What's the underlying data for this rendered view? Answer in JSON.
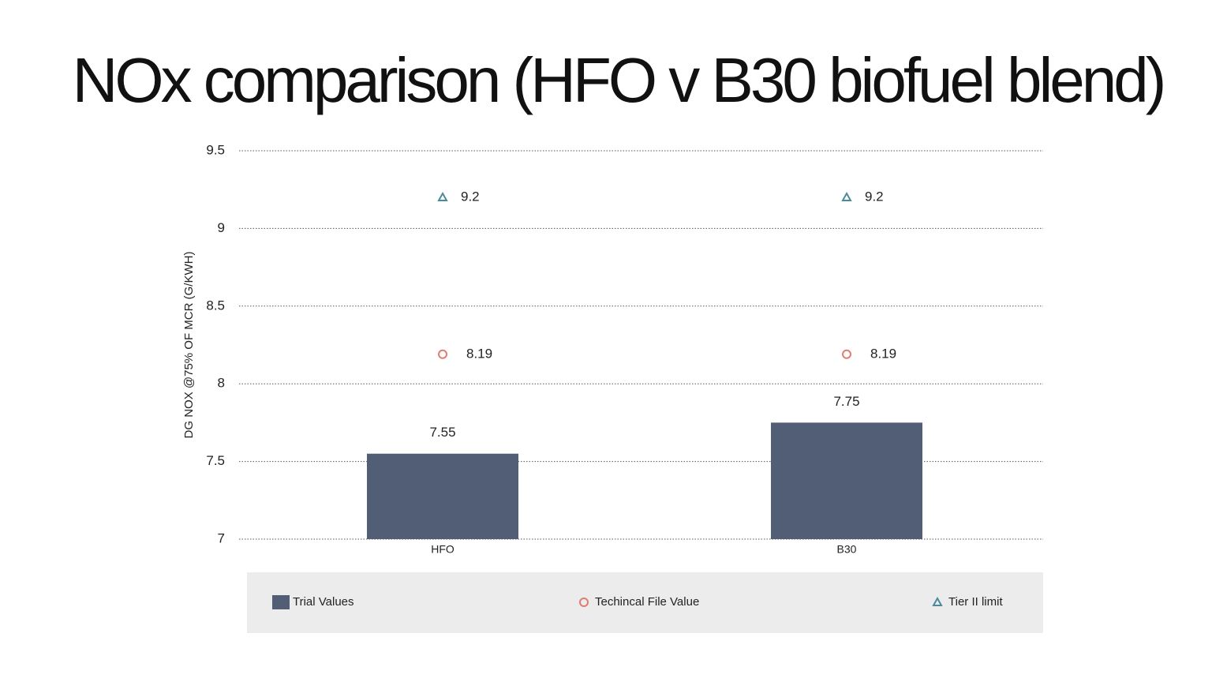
{
  "chart_data": {
    "type": "bar",
    "title": "NOx comparison (HFO v B30 biofuel blend)",
    "y_label": "DG NOX @75% OF MCR (G/KWH)",
    "categories": [
      "HFO",
      "B30"
    ],
    "series": [
      {
        "name": "Trial Values",
        "color": "#525e75",
        "marker": "bar",
        "values": [
          7.55,
          7.75
        ]
      },
      {
        "name": "Techincal File Value",
        "color": "#e07b70",
        "marker": "circle",
        "values": [
          8.19,
          8.19
        ]
      },
      {
        "name": "Tier II limit",
        "color": "#4a8a9a",
        "marker": "triangle",
        "values": [
          9.2,
          9.2
        ]
      }
    ],
    "ylim": [
      7,
      9.5
    ],
    "yticks": [
      7,
      7.5,
      8,
      8.5,
      9,
      9.5
    ],
    "grid": true,
    "legend": "bottom"
  }
}
